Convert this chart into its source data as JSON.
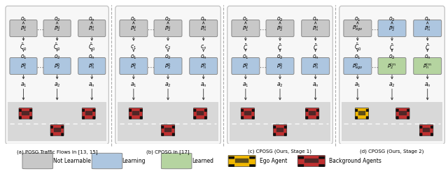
{
  "panels": [
    {
      "title": "(a) POSG Traffic Flows in [13, 15]",
      "upper_box_colors": [
        "gray",
        "gray",
        "gray"
      ],
      "lower_box_colors": [
        "blue",
        "blue",
        "blue"
      ],
      "upper_labels": [
        "$\\beta_1^u$",
        "$\\beta_2^u$",
        "$\\beta_n^u$"
      ],
      "lower_labels": [
        "$\\beta_1^b$",
        "$\\beta_2^b$",
        "$\\beta_n^b$"
      ],
      "obs_upper": [
        "$o_1$",
        "$o_2$",
        "$o_n$"
      ],
      "obs_lower": [
        "$o_1$",
        "$o_2$",
        "$o_n$"
      ],
      "c_labels": [
        "$\\bar{C}_0$",
        "$\\bar{C}_0$",
        "$\\bar{C}_0$"
      ],
      "a_labels": [
        "$a_1$",
        "$a_2$",
        "$a_n$"
      ],
      "ego_car": false
    },
    {
      "title": "(b) CPOSG in [17]",
      "upper_box_colors": [
        "gray",
        "gray",
        "gray"
      ],
      "lower_box_colors": [
        "blue",
        "blue",
        "blue"
      ],
      "upper_labels": [
        "$\\beta_1^u$",
        "$\\beta_2^u$",
        "$\\beta_n^u$"
      ],
      "lower_labels": [
        "$\\beta_1^b$",
        "$\\beta_2^b$",
        "$\\beta_n^b$"
      ],
      "obs_upper": [
        "$o_1$",
        "$o_2$",
        "$o_n$"
      ],
      "obs_lower": [
        "$o_1$",
        "$o_2$",
        "$o_n$"
      ],
      "c_labels": [
        "$c_1$",
        "$c_2$",
        "$c_n$"
      ],
      "a_labels": [
        "$a_1$",
        "$a_2$",
        "$a_n$"
      ],
      "ego_car": false
    },
    {
      "title": "(c) CPOSG (Ours, Stage 1)",
      "upper_box_colors": [
        "gray",
        "gray",
        "gray"
      ],
      "lower_box_colors": [
        "blue",
        "blue",
        "blue"
      ],
      "upper_labels": [
        "$\\beta_1^u$",
        "$\\beta_2^u$",
        "$\\beta_n^u$"
      ],
      "lower_labels": [
        "$\\beta_1^b$",
        "$\\beta_2^b$",
        "$\\beta_n^b$"
      ],
      "obs_upper": [
        "$o_1$",
        "$o_2$",
        "$o_n$"
      ],
      "obs_lower": [
        "$o_1$",
        "$o_2$",
        "$o_n$"
      ],
      "c_labels": [
        "$\\bar{C}$",
        "$\\bar{C}$",
        "$\\bar{C}$"
      ],
      "a_labels": [
        "$a_1$",
        "$a_2$",
        "$a_n$"
      ],
      "ego_car": false
    },
    {
      "title": "(d) CPOSG (Ours, Stage 2)",
      "upper_box_colors": [
        "gray",
        "blue",
        "blue"
      ],
      "lower_box_colors": [
        "blue",
        "green",
        "green"
      ],
      "upper_labels": [
        "$\\beta_{ego}^u$",
        "$\\beta_2^u$",
        "$\\beta_n^u$"
      ],
      "lower_labels": [
        "$\\beta_{ego}^b$",
        "$\\beta_2^{lrn}$",
        "$\\beta_n^{lrn}$"
      ],
      "obs_upper": [
        "$o_1$",
        "$o_2$",
        "$o_n$"
      ],
      "obs_lower": [
        "$o_1$",
        "$o_2$",
        "$o_n$"
      ],
      "c_labels": [
        "$\\bar{C}_0$",
        "$\\bar{C}$",
        "$\\bar{C}$"
      ],
      "a_labels": [
        "$a_1$",
        "$a_2$",
        "$a_n$"
      ],
      "ego_car": true
    }
  ],
  "gray_box_color": "#c8c8c8",
  "blue_box_color": "#adc6e0",
  "green_box_color": "#b5d4a0",
  "road_color": "#cccccc",
  "panel_bg": "#f7f7f7",
  "road_bg": "#d8d8d8",
  "car_red": "#c03030",
  "car_yellow": "#f0b800",
  "separator_color": "#aaaaaa"
}
